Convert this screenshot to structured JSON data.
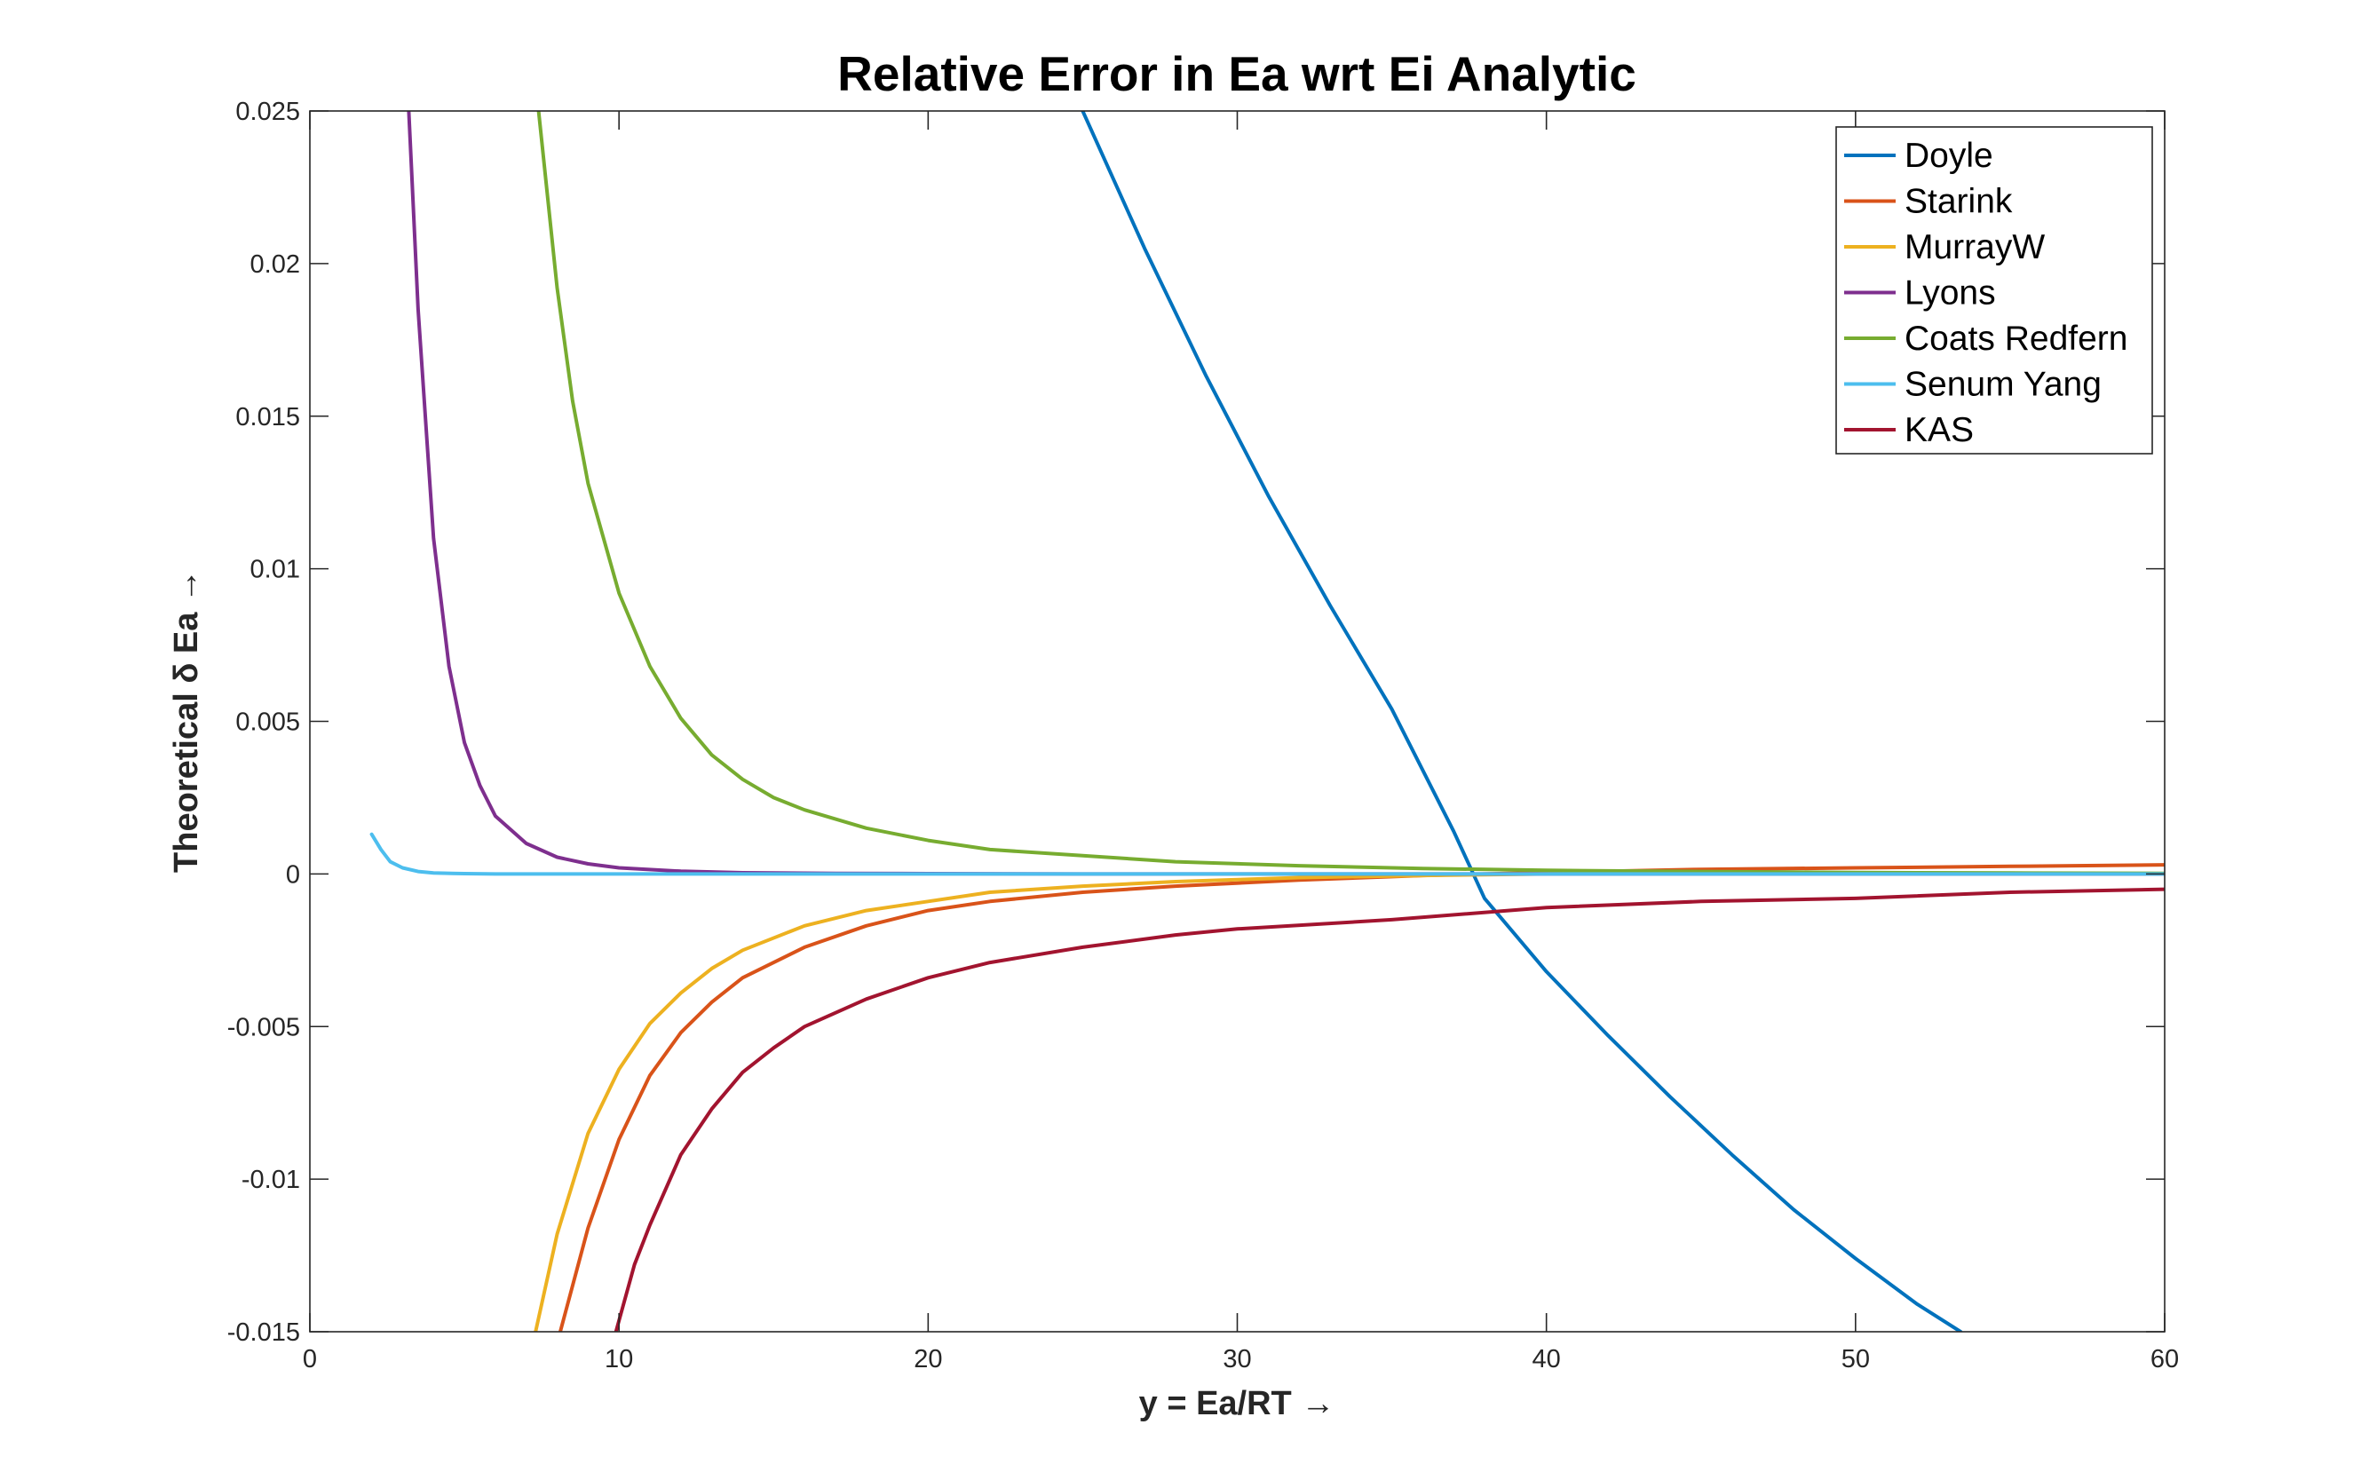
{
  "chart_data": {
    "type": "line",
    "title": "Relative Error in Ea wrt Ei Analytic",
    "xlabel": "y = Ea/RT →",
    "ylabel": "Theoretical δ  Ea →",
    "xlim": [
      0,
      60
    ],
    "ylim": [
      -0.015,
      0.025
    ],
    "xticks": [
      0,
      10,
      20,
      30,
      40,
      50,
      60
    ],
    "xtick_labels": [
      "0",
      "10",
      "20",
      "30",
      "40",
      "50",
      "60"
    ],
    "yticks": [
      -0.015,
      -0.01,
      -0.005,
      0,
      0.005,
      0.01,
      0.015,
      0.02,
      0.025
    ],
    "ytick_labels": [
      "-0.015",
      "-0.01",
      "-0.005",
      "0",
      "0.005",
      "0.01",
      "0.015",
      "0.02",
      "0.025"
    ],
    "grid": false,
    "legend_position": "top-right",
    "series": [
      {
        "name": "Doyle",
        "color": "#0072BD",
        "x": [
          25,
          27,
          29,
          31,
          33,
          35,
          37,
          37.5,
          38,
          40,
          42,
          44,
          46,
          48,
          50,
          52,
          53.4
        ],
        "y": [
          0.025,
          0.0205,
          0.0163,
          0.0124,
          0.0088,
          0.0054,
          0.0014,
          0.0003,
          -0.0008,
          -0.0032,
          -0.0053,
          -0.0073,
          -0.0092,
          -0.011,
          -0.0126,
          -0.0141,
          -0.015
        ]
      },
      {
        "name": "Starink",
        "color": "#D95319",
        "x": [
          8.1,
          9,
          10,
          11,
          12,
          13,
          14,
          16,
          18,
          20,
          22,
          25,
          28,
          32,
          36,
          40,
          45,
          50,
          55,
          60
        ],
        "y": [
          -0.015,
          -0.0116,
          -0.0087,
          -0.0066,
          -0.0052,
          -0.0042,
          -0.0034,
          -0.0024,
          -0.0017,
          -0.0012,
          -0.0009,
          -0.0006,
          -0.0004,
          -0.0002,
          -5e-05,
          5e-05,
          0.00015,
          0.0002,
          0.00025,
          0.0003
        ]
      },
      {
        "name": "MurrayW",
        "color": "#EDB120",
        "x": [
          7.3,
          8,
          9,
          10,
          11,
          12,
          13,
          14,
          16,
          18,
          20,
          22,
          25,
          28,
          32,
          36,
          40,
          50,
          60
        ],
        "y": [
          -0.015,
          -0.0118,
          -0.0085,
          -0.0064,
          -0.0049,
          -0.0039,
          -0.0031,
          -0.0025,
          -0.0017,
          -0.0012,
          -0.0009,
          -0.0006,
          -0.0004,
          -0.00025,
          -0.00012,
          -5e-05,
          0,
          0,
          0
        ]
      },
      {
        "name": "Lyons",
        "color": "#7E2F8E",
        "x": [
          3.2,
          3.5,
          4,
          4.5,
          5,
          5.5,
          6,
          7,
          8,
          9,
          10,
          12,
          14,
          17,
          20,
          25,
          30,
          40,
          60
        ],
        "y": [
          0.025,
          0.0185,
          0.011,
          0.0068,
          0.0043,
          0.0029,
          0.0019,
          0.001,
          0.00055,
          0.00033,
          0.0002,
          9e-05,
          4e-05,
          2e-05,
          1e-05,
          0,
          0,
          0,
          0
        ]
      },
      {
        "name": "Coats Redfern",
        "color": "#77AC30",
        "x": [
          7.4,
          8,
          8.5,
          9,
          10,
          11,
          12,
          13,
          14,
          15,
          16,
          18,
          20,
          22,
          25,
          28,
          32,
          36,
          40,
          42,
          45,
          50,
          55,
          60
        ],
        "y": [
          0.025,
          0.0192,
          0.0155,
          0.0128,
          0.0092,
          0.0068,
          0.0051,
          0.0039,
          0.0031,
          0.0025,
          0.0021,
          0.0015,
          0.0011,
          0.0008,
          0.0006,
          0.0004,
          0.00027,
          0.00018,
          0.00012,
          0.0001,
          8e-05,
          5e-05,
          3e-05,
          2e-05
        ]
      },
      {
        "name": "Senum Yang",
        "color": "#4DBEEE",
        "x": [
          2,
          2.3,
          2.6,
          3,
          3.5,
          4,
          5,
          6,
          8,
          10,
          20,
          30,
          40,
          50,
          60
        ],
        "y": [
          0.0013,
          0.0008,
          0.0004,
          0.0002,
          8e-05,
          3e-05,
          1e-05,
          0,
          0,
          0,
          0,
          0,
          0,
          0,
          0
        ]
      },
      {
        "name": "KAS",
        "color": "#A2142F",
        "x": [
          9.9,
          10.5,
          11,
          12,
          13,
          14,
          15,
          16,
          18,
          20,
          22,
          25,
          28,
          30,
          35,
          40,
          45,
          50,
          55,
          60
        ],
        "y": [
          -0.015,
          -0.0128,
          -0.0115,
          -0.0092,
          -0.0077,
          -0.0065,
          -0.0057,
          -0.005,
          -0.0041,
          -0.0034,
          -0.0029,
          -0.0024,
          -0.002,
          -0.0018,
          -0.0015,
          -0.0011,
          -0.0009,
          -0.0008,
          -0.0006,
          -0.0005
        ]
      }
    ]
  }
}
